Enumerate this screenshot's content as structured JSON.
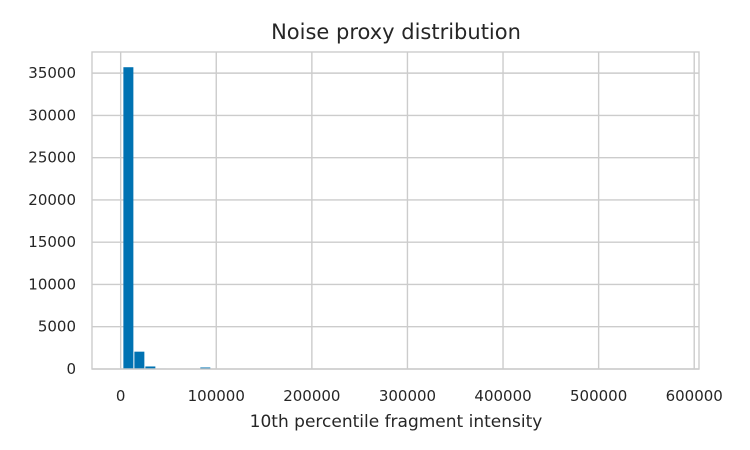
{
  "chart_data": {
    "type": "bar",
    "title": "Noise proxy distribution",
    "xlabel": "10th percentile fragment intensity",
    "ylabel": "",
    "xlim": [
      -30000,
      605000
    ],
    "ylim": [
      0,
      37500
    ],
    "xticks": [
      0,
      100000,
      200000,
      300000,
      400000,
      500000,
      600000
    ],
    "xtick_labels": [
      "0",
      "100000",
      "200000",
      "300000",
      "400000",
      "500000",
      "600000"
    ],
    "yticks": [
      0,
      5000,
      10000,
      15000,
      20000,
      25000,
      30000,
      35000
    ],
    "ytick_labels": [
      "0",
      "5000",
      "10000",
      "15000",
      "20000",
      "25000",
      "30000",
      "35000"
    ],
    "grid": true,
    "bar_color": "#0072b2",
    "bin_width": 11500,
    "bins": [
      {
        "start": 2300,
        "count": 35700
      },
      {
        "start": 13800,
        "count": 2050
      },
      {
        "start": 25300,
        "count": 300
      },
      {
        "start": 36800,
        "count": 60
      },
      {
        "start": 48300,
        "count": 30
      },
      {
        "start": 59800,
        "count": 20
      },
      {
        "start": 71300,
        "count": 15
      },
      {
        "start": 82800,
        "count": 180
      },
      {
        "start": 94300,
        "count": 10
      }
    ]
  }
}
